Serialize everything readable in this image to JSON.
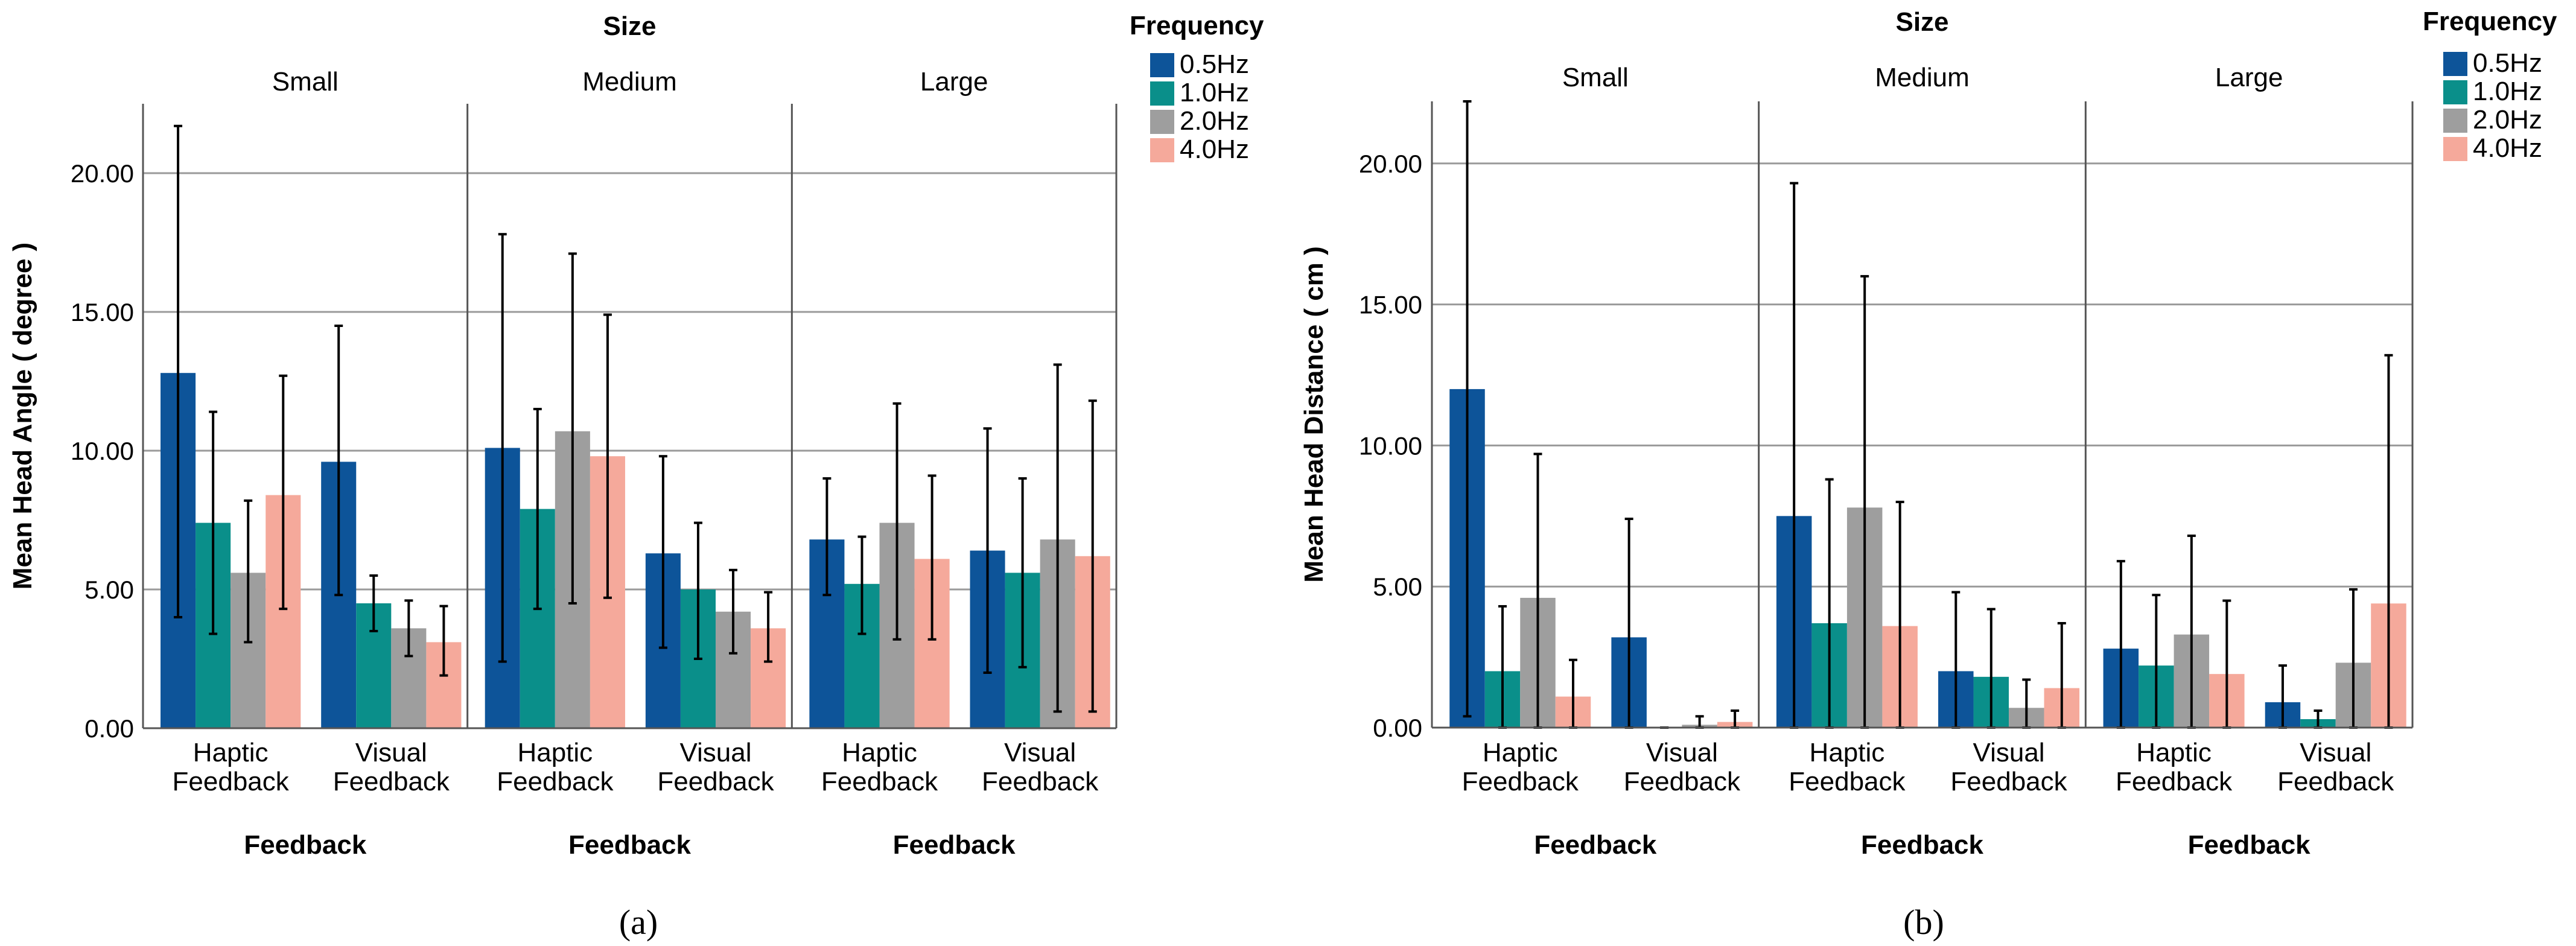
{
  "colors": {
    "0.5Hz": "#0d5499",
    "1.0Hz": "#0a8f8a",
    "2.0Hz": "#9e9e9e",
    "4.0Hz": "#f5a99b",
    "grid": "#9a9a9a",
    "axis": "#555555"
  },
  "chart_data": [
    {
      "type": "bar",
      "caption": "(a)",
      "title": "Size",
      "facet_labels": [
        "Small",
        "Medium",
        "Large"
      ],
      "categories": [
        "Haptic\nFeedback",
        "Visual\nFeedback"
      ],
      "xlabel": "Feedback",
      "ylabel": "Mean Head Angle ( degree )",
      "ylim": [
        0,
        22.5
      ],
      "yticks": [
        0,
        5,
        10,
        15,
        20
      ],
      "ytick_labels": [
        "0.00",
        "5.00",
        "10.00",
        "15.00",
        "20.00"
      ],
      "grid": true,
      "legend": {
        "title": "Frequency",
        "position": "top-right",
        "entries": [
          "0.5Hz",
          "1.0Hz",
          "2.0Hz",
          "4.0Hz"
        ]
      },
      "series_names": [
        "0.5Hz",
        "1.0Hz",
        "2.0Hz",
        "4.0Hz"
      ],
      "panels": [
        {
          "facet": "Small",
          "values": [
            [
              12.8,
              7.4,
              5.6,
              8.4
            ],
            [
              9.6,
              4.5,
              3.6,
              3.1
            ]
          ],
          "err_low": [
            [
              4.0,
              3.4,
              3.1,
              4.3
            ],
            [
              4.8,
              3.5,
              2.6,
              1.9
            ]
          ],
          "err_high": [
            [
              21.7,
              11.4,
              8.2,
              12.7
            ],
            [
              14.5,
              5.5,
              4.6,
              4.4
            ]
          ]
        },
        {
          "facet": "Medium",
          "values": [
            [
              10.1,
              7.9,
              10.7,
              9.8
            ],
            [
              6.3,
              5.0,
              4.2,
              3.6
            ]
          ],
          "err_low": [
            [
              2.4,
              4.3,
              4.5,
              4.7
            ],
            [
              2.9,
              2.5,
              2.7,
              2.4
            ]
          ],
          "err_high": [
            [
              17.8,
              11.5,
              17.1,
              14.9
            ],
            [
              9.8,
              7.4,
              5.7,
              4.9
            ]
          ]
        },
        {
          "facet": "Large",
          "values": [
            [
              6.8,
              5.2,
              7.4,
              6.1
            ],
            [
              6.4,
              5.6,
              6.8,
              6.2
            ]
          ],
          "err_low": [
            [
              4.8,
              3.4,
              3.2,
              3.2
            ],
            [
              2.0,
              2.2,
              0.6,
              0.6
            ]
          ],
          "err_high": [
            [
              9.0,
              6.9,
              11.7,
              9.1
            ],
            [
              10.8,
              9.0,
              13.1,
              11.8
            ]
          ]
        }
      ]
    },
    {
      "type": "bar",
      "caption": "(b)",
      "title": "Size",
      "facet_labels": [
        "Small",
        "Medium",
        "Large"
      ],
      "categories": [
        "Haptic\nFeedback",
        "Visual\nFeedback"
      ],
      "xlabel": "Feedback",
      "ylabel": "Mean Head Distance ( cm )",
      "ylim": [
        0,
        22.2
      ],
      "yticks": [
        0,
        5,
        10,
        15,
        20
      ],
      "ytick_labels": [
        "0.00",
        "5.00",
        "10.00",
        "15.00",
        "20.00"
      ],
      "grid": true,
      "legend": {
        "title": "Frequency",
        "position": "top-right",
        "entries": [
          "0.5Hz",
          "1.0Hz",
          "2.0Hz",
          "4.0Hz"
        ]
      },
      "series_names": [
        "0.5Hz",
        "1.0Hz",
        "2.0Hz",
        "4.0Hz"
      ],
      "panels": [
        {
          "facet": "Small",
          "values": [
            [
              12.0,
              2.0,
              4.6,
              1.1
            ],
            [
              3.2,
              0.0,
              0.1,
              0.2
            ]
          ],
          "err_low": [
            [
              0.4,
              0.0,
              0.0,
              0.0
            ],
            [
              0.0,
              0.0,
              0.0,
              0.0
            ]
          ],
          "err_high": [
            [
              22.2,
              4.3,
              9.7,
              2.4
            ],
            [
              7.4,
              0.0,
              0.4,
              0.6
            ]
          ]
        },
        {
          "facet": "Medium",
          "values": [
            [
              7.5,
              3.7,
              7.8,
              3.6
            ],
            [
              2.0,
              1.8,
              0.7,
              1.4
            ]
          ],
          "err_low": [
            [
              0.0,
              0.0,
              0.0,
              0.0
            ],
            [
              0.0,
              0.0,
              0.0,
              0.0
            ]
          ],
          "err_high": [
            [
              19.3,
              8.8,
              16.0,
              8.0
            ],
            [
              4.8,
              4.2,
              1.7,
              3.7
            ]
          ]
        },
        {
          "facet": "Large",
          "values": [
            [
              2.8,
              2.2,
              3.3,
              1.9
            ],
            [
              0.9,
              0.3,
              2.3,
              4.4
            ]
          ],
          "err_low": [
            [
              0.0,
              0.0,
              0.0,
              0.0
            ],
            [
              0.0,
              0.0,
              0.0,
              0.0
            ]
          ],
          "err_high": [
            [
              5.9,
              4.7,
              6.8,
              4.5
            ],
            [
              2.2,
              0.6,
              4.9,
              13.2
            ]
          ]
        }
      ]
    }
  ]
}
